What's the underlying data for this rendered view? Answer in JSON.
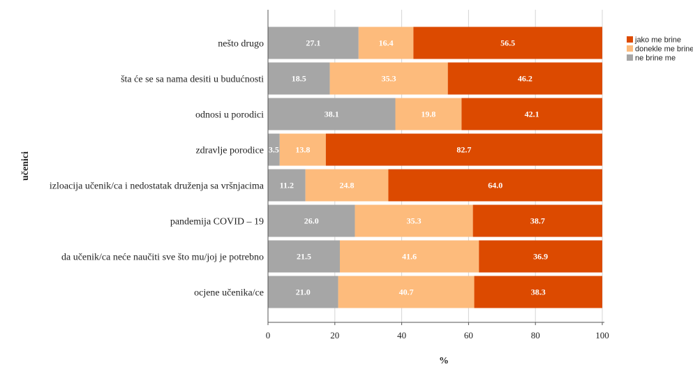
{
  "chart_data": {
    "type": "bar",
    "orientation": "horizontal",
    "stacked": true,
    "categories": [
      "nešto drugo",
      "šta će se sa nama desiti u budućnosti",
      "odnosi u porodici",
      "zdravlje porodice",
      "izloacija učenik/ca i nedostatak druženja sa vršnjacima",
      "pandemija COVID – 19",
      "da učenik/ca neće naučiti sve što mu/joj je potrebno",
      "ocjene učenika/ce"
    ],
    "series": [
      {
        "name": "ne brine me",
        "color": "#a6a6a6",
        "values": [
          27.1,
          18.5,
          38.1,
          3.5,
          11.2,
          26.0,
          21.5,
          21.0
        ]
      },
      {
        "name": "donekle me brine",
        "color": "#fdbb7c",
        "values": [
          16.4,
          35.3,
          19.8,
          13.8,
          24.8,
          35.3,
          41.6,
          40.7
        ]
      },
      {
        "name": "jako me brine",
        "color": "#dc4a00",
        "values": [
          56.5,
          46.2,
          42.1,
          82.7,
          64.0,
          38.7,
          36.9,
          38.3
        ]
      }
    ],
    "xlabel": "%",
    "ylabel": "učenici",
    "xlim": [
      0,
      100
    ],
    "xticks": [
      "0",
      "20",
      "40",
      "60",
      "80",
      "100"
    ],
    "grid": true,
    "legend_position": "top-right",
    "legend_order": [
      "jako me brine",
      "donekle me brine",
      "ne brine me"
    ]
  }
}
